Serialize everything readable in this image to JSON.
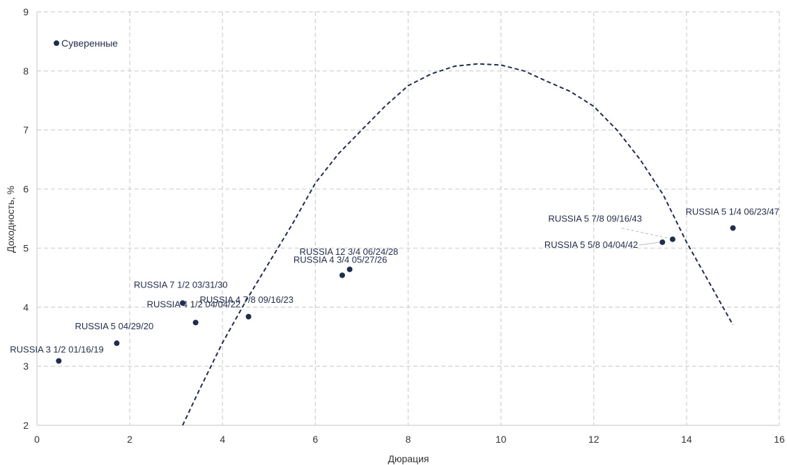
{
  "chart_data": {
    "type": "scatter",
    "xlabel": "Дюрация",
    "ylabel": "Доходность, %",
    "xlim": [
      0,
      16
    ],
    "ylim": [
      2,
      9
    ],
    "xticks": [
      0,
      2,
      4,
      6,
      8,
      10,
      12,
      14,
      16
    ],
    "yticks": [
      2,
      3,
      4,
      5,
      6,
      7,
      8,
      9
    ],
    "grid": true,
    "legend_position": "top-left",
    "colors": {
      "points": "#1f2d4e",
      "trend": "#1f2d4e",
      "grid": "#d0d0d0",
      "leader": "#bbbbbb"
    },
    "series": [
      {
        "name": "Суверенные",
        "points": [
          {
            "x": 0.47,
            "y": 3.09,
            "label": "RUSSIA 3 1/2 01/16/19"
          },
          {
            "x": 1.72,
            "y": 3.39,
            "label": "RUSSIA 5 04/29/20"
          },
          {
            "x": 3.14,
            "y": 4.07,
            "label": "RUSSIA 7 1/2 03/31/30"
          },
          {
            "x": 3.42,
            "y": 3.74,
            "label": "RUSSIA 4 1/2 04/04/22"
          },
          {
            "x": 4.56,
            "y": 3.84,
            "label": "RUSSIA 4 7/8 09/16/23"
          },
          {
            "x": 6.58,
            "y": 4.54,
            "label": "RUSSIA 4 3/4 05/27/26"
          },
          {
            "x": 6.74,
            "y": 4.64,
            "label": "RUSSIA 12 3/4 06/24/28"
          },
          {
            "x": 13.48,
            "y": 5.1,
            "label": "RUSSIA 5 5/8 04/04/42"
          },
          {
            "x": 13.7,
            "y": 5.15,
            "label": "RUSSIA 5 7/8 09/16/43"
          },
          {
            "x": 15.0,
            "y": 5.34,
            "label": "RUSSIA 5 1/4 06/23/47"
          }
        ]
      }
    ],
    "trendline": {
      "style": "dashed",
      "points": [
        [
          3.14,
          2.0
        ],
        [
          3.5,
          2.6
        ],
        [
          4.0,
          3.4
        ],
        [
          4.5,
          4.1
        ],
        [
          5.0,
          4.75
        ],
        [
          5.5,
          5.4
        ],
        [
          6.0,
          6.1
        ],
        [
          6.5,
          6.6
        ],
        [
          7.0,
          7.0
        ],
        [
          7.5,
          7.4
        ],
        [
          8.0,
          7.75
        ],
        [
          8.5,
          7.95
        ],
        [
          9.0,
          8.08
        ],
        [
          9.5,
          8.12
        ],
        [
          10.0,
          8.1
        ],
        [
          10.5,
          8.0
        ],
        [
          11.0,
          7.82
        ],
        [
          11.5,
          7.65
        ],
        [
          12.0,
          7.4
        ],
        [
          12.5,
          7.0
        ],
        [
          13.0,
          6.5
        ],
        [
          13.5,
          5.9
        ],
        [
          14.0,
          5.1
        ],
        [
          14.5,
          4.4
        ],
        [
          15.0,
          3.7
        ]
      ]
    }
  }
}
